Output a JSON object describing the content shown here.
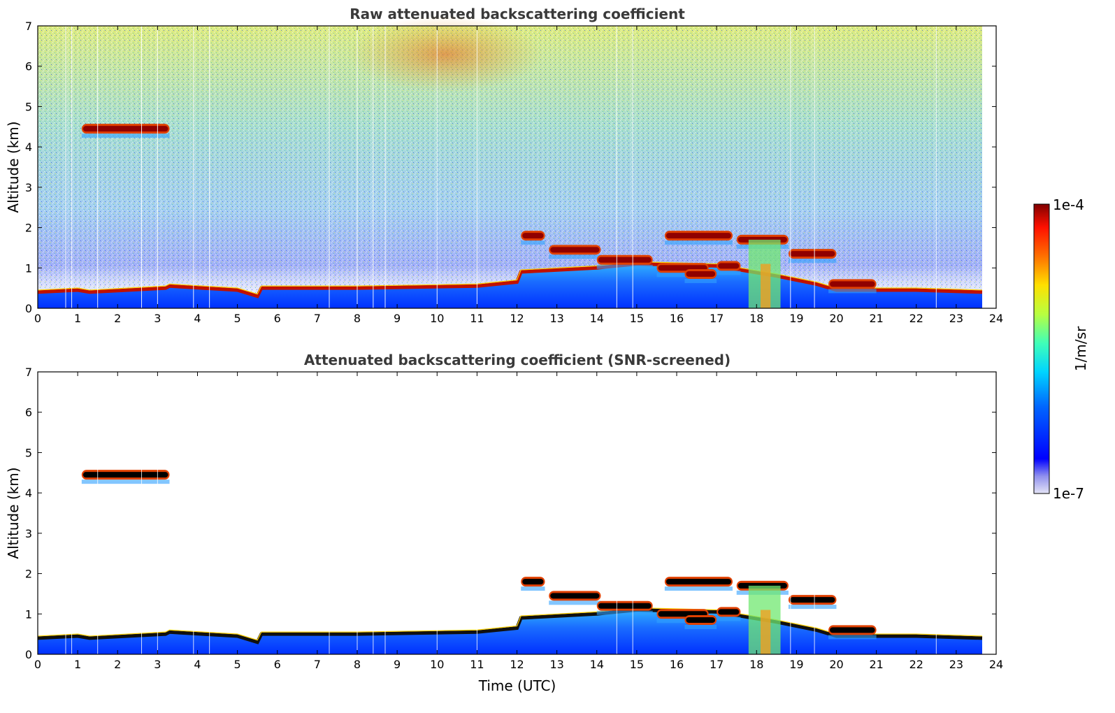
{
  "chart_data": [
    {
      "type": "heatmap",
      "title": "Raw attenuated backscattering coefficient",
      "xlabel": "",
      "ylabel": "Altitude (km)",
      "xlim": [
        0,
        24
      ],
      "ylim": [
        0,
        7
      ],
      "xticks": [
        "0",
        "1",
        "2",
        "3",
        "4",
        "5",
        "6",
        "7",
        "8",
        "9",
        "10",
        "11",
        "12",
        "13",
        "14",
        "15",
        "16",
        "17",
        "18",
        "19",
        "20",
        "21",
        "22",
        "23",
        "24"
      ],
      "yticks": [
        "0",
        "1",
        "2",
        "3",
        "4",
        "5",
        "6",
        "7"
      ],
      "data_end_hour": 23.65,
      "boundary_layer_top_km": [
        {
          "x": 0,
          "y": 0.4
        },
        {
          "x": 1.0,
          "y": 0.45
        },
        {
          "x": 1.3,
          "y": 0.4
        },
        {
          "x": 3.2,
          "y": 0.5
        },
        {
          "x": 3.3,
          "y": 0.55
        },
        {
          "x": 5.0,
          "y": 0.45
        },
        {
          "x": 5.5,
          "y": 0.3
        },
        {
          "x": 5.6,
          "y": 0.5
        },
        {
          "x": 8.0,
          "y": 0.5
        },
        {
          "x": 11.0,
          "y": 0.55
        },
        {
          "x": 12.0,
          "y": 0.65
        },
        {
          "x": 12.1,
          "y": 0.9
        },
        {
          "x": 14.0,
          "y": 1.0
        },
        {
          "x": 15.0,
          "y": 1.1
        },
        {
          "x": 17.0,
          "y": 1.05
        },
        {
          "x": 18.5,
          "y": 0.8
        },
        {
          "x": 19.5,
          "y": 0.6
        },
        {
          "x": 20.0,
          "y": 0.45
        },
        {
          "x": 22.0,
          "y": 0.45
        },
        {
          "x": 23.65,
          "y": 0.4
        }
      ],
      "cloud_layers": [
        {
          "x0": 1.1,
          "x1": 3.3,
          "alt_km": 4.45
        },
        {
          "x0": 12.1,
          "x1": 12.7,
          "alt_km": 1.8
        },
        {
          "x0": 12.8,
          "x1": 14.1,
          "alt_km": 1.45
        },
        {
          "x0": 14.0,
          "x1": 15.4,
          "alt_km": 1.2
        },
        {
          "x0": 15.5,
          "x1": 16.8,
          "alt_km": 1.0
        },
        {
          "x0": 16.2,
          "x1": 17.0,
          "alt_km": 0.85
        },
        {
          "x0": 17.0,
          "x1": 17.6,
          "alt_km": 1.05
        },
        {
          "x0": 17.5,
          "x1": 18.8,
          "alt_km": 1.7
        },
        {
          "x0": 18.8,
          "x1": 20.0,
          "alt_km": 1.35
        },
        {
          "x0": 15.7,
          "x1": 17.4,
          "alt_km": 1.8
        },
        {
          "x0": 19.8,
          "x1": 21.0,
          "alt_km": 0.6
        }
      ],
      "precip_band": {
        "x0": 17.8,
        "x1": 18.6,
        "alt_top_km": 1.7
      }
    },
    {
      "type": "heatmap",
      "title": "Attenuated backscattering coefficient (SNR-screened)",
      "xlabel": "Time (UTC)",
      "ylabel": "Altitude (km)",
      "xlim": [
        0,
        24
      ],
      "ylim": [
        0,
        7
      ],
      "xticks": [
        "0",
        "1",
        "2",
        "3",
        "4",
        "5",
        "6",
        "7",
        "8",
        "9",
        "10",
        "11",
        "12",
        "13",
        "14",
        "15",
        "16",
        "17",
        "18",
        "19",
        "20",
        "21",
        "22",
        "23",
        "24"
      ],
      "yticks": [
        "0",
        "1",
        "2",
        "3",
        "4",
        "5",
        "6",
        "7"
      ]
    }
  ],
  "colorbar": {
    "label": "1/m/sr",
    "max_label": "1e-4",
    "min_label": "1e-7",
    "scale": "log",
    "range": [
      1e-07,
      0.0001
    ]
  }
}
